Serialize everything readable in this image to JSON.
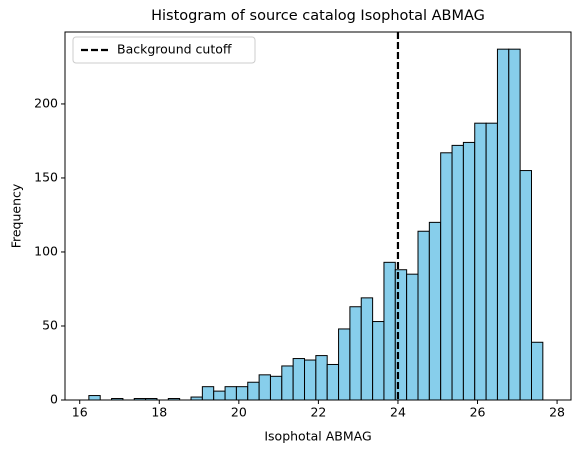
{
  "chart_data": {
    "type": "histogram",
    "title": "Histogram of source catalog Isophotal ABMAG",
    "x_label": "Isophotal ABMAG",
    "y_label": "Frequency",
    "bins": [
      16.23,
      16.515,
      16.801,
      17.086,
      17.371,
      17.657,
      17.942,
      18.227,
      18.512,
      18.798,
      19.083,
      19.368,
      19.654,
      19.939,
      20.224,
      20.51,
      20.795,
      21.08,
      21.365,
      21.651,
      21.936,
      22.221,
      22.507,
      22.792,
      23.077,
      23.363,
      23.648,
      23.933,
      24.218,
      24.504,
      24.789,
      25.074,
      25.36,
      25.645,
      25.93,
      26.216,
      26.501,
      26.786,
      27.071,
      27.357,
      27.642
    ],
    "values": [
      3,
      0,
      1,
      0,
      1,
      1,
      0,
      1,
      0,
      2,
      9,
      6,
      9,
      9,
      12,
      17,
      16,
      23,
      28,
      27,
      30,
      24,
      48,
      63,
      69,
      53,
      93,
      88,
      85,
      114,
      120,
      167,
      172,
      174,
      187,
      187,
      237,
      237,
      155,
      39
    ],
    "color": "#87ceeb",
    "edge_color": "#000000",
    "cutoff": {
      "label": "Background cutoff",
      "value": 24,
      "color": "#000000"
    },
    "legend": "upper left",
    "xlim": [
      15.63,
      28.35
    ],
    "ylim": [
      0,
      248.6
    ],
    "xticks": [
      16,
      18,
      20,
      22,
      24,
      26,
      28
    ],
    "yticks": [
      0,
      50,
      100,
      150,
      200
    ]
  }
}
